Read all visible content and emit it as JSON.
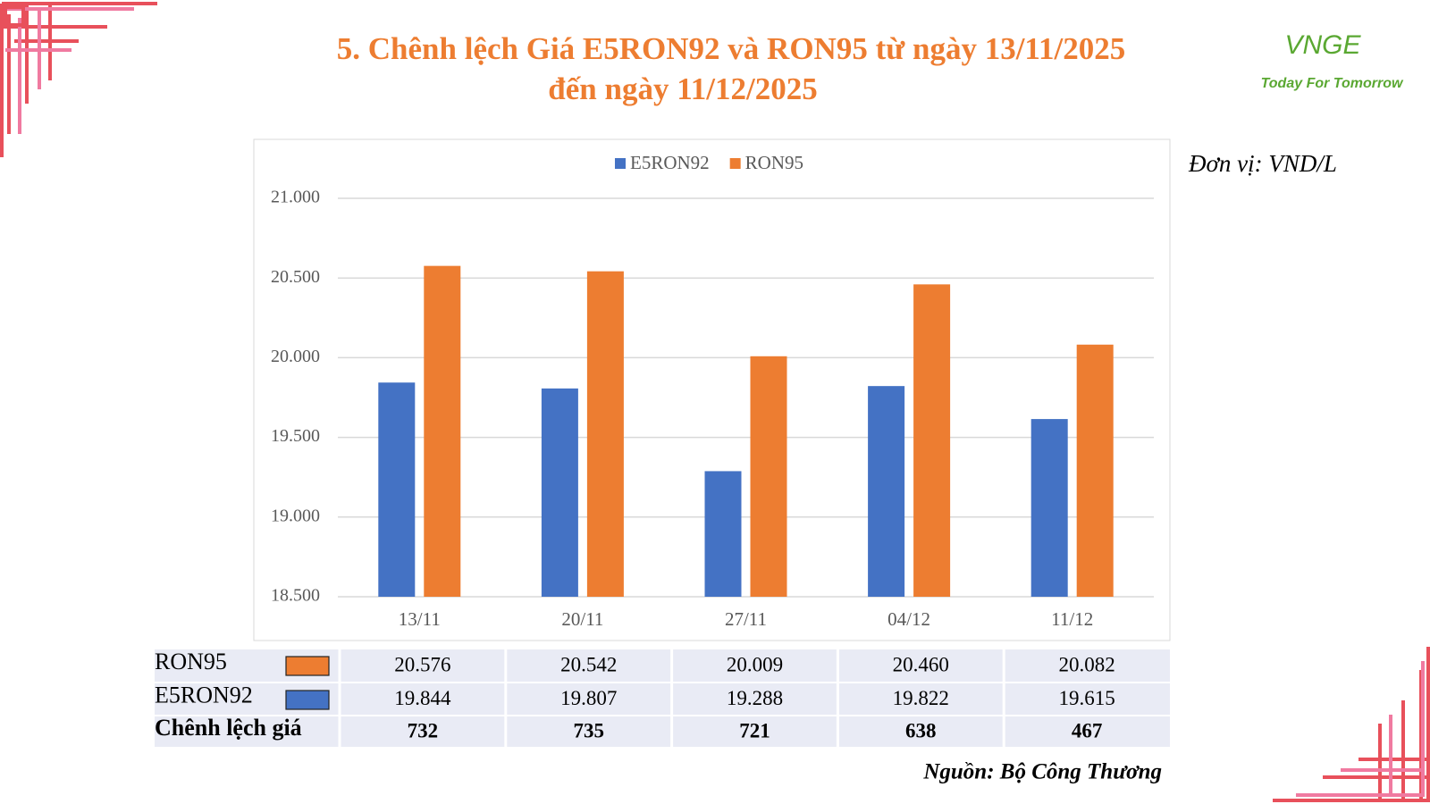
{
  "chart_data": {
    "type": "bar",
    "title": [
      "5. Chênh lệch Giá E5RON92 và RON95 từ ngày 13/11/2025",
      "đến ngày 11/12/2025"
    ],
    "unit": "Đơn vị: VND/L",
    "source": "Nguồn: Bộ Công Thương",
    "logo": {
      "name": "VNGE",
      "slogan": "Today For Tomorrow"
    },
    "categories": [
      "13/11",
      "20/11",
      "27/11",
      "04/12",
      "11/12"
    ],
    "series": [
      {
        "name": "E5RON92",
        "color": "#4472c4",
        "values": [
          19844,
          19807,
          19288,
          19822,
          19615
        ],
        "value_labels": [
          "19.844",
          "19.807",
          "19.288",
          "19.822",
          "19.615"
        ]
      },
      {
        "name": "RON95",
        "color": "#ed7d31",
        "values": [
          20576,
          20542,
          20009,
          20460,
          20082
        ],
        "value_labels": [
          "20.576",
          "20.542",
          "20.009",
          "20.460",
          "20.082"
        ]
      }
    ],
    "difference": {
      "name": "Chênh lệch giá",
      "values": [
        732,
        735,
        721,
        638,
        467
      ]
    },
    "ylim": [
      18500,
      21000
    ],
    "yticks": [
      {
        "value": 18500,
        "label": "18.500"
      },
      {
        "value": 19000,
        "label": "19.000"
      },
      {
        "value": 19500,
        "label": "19.500"
      },
      {
        "value": 20000,
        "label": "20.000"
      },
      {
        "value": 20500,
        "label": "20.500"
      },
      {
        "value": 21000,
        "label": "21.000"
      }
    ],
    "grid": true,
    "legend": "top"
  }
}
